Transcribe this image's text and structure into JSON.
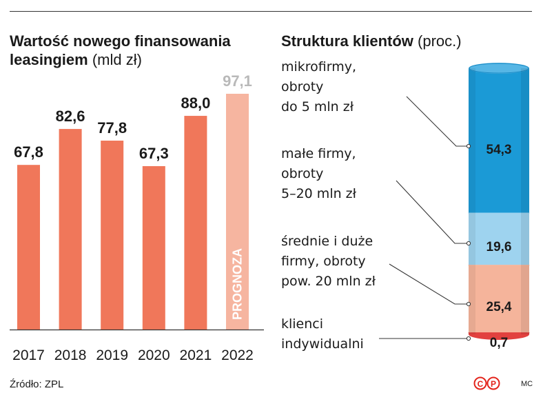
{
  "source": "Źródło: ZPL",
  "credit": "MC",
  "logo_text": "©P",
  "colors": {
    "bar": "#f0775a",
    "bar_forecast": "#f6b5a0",
    "forecast_label": "#b9b9b9",
    "cyl_dark": "#1b9ad6",
    "cyl_light": "#9ed3ef",
    "cyl_salmon": "#f5b49b",
    "cyl_red": "#e2413f",
    "logo": "#e3231a"
  },
  "chart_data": [
    {
      "type": "bar",
      "title": "Wartość nowego finansowania leasingiem",
      "title_line1": "Wartość nowego finansowania",
      "title_line2": "leasingiem",
      "unit": "(mld zł)",
      "categories": [
        "2017",
        "2018",
        "2019",
        "2020",
        "2021",
        "2022"
      ],
      "values": [
        67.8,
        82.6,
        77.8,
        67.3,
        88.0,
        97.1
      ],
      "value_labels": [
        "67,8",
        "82,6",
        "77,8",
        "67,3",
        "88,0",
        "97,1"
      ],
      "forecast": [
        false,
        false,
        false,
        false,
        false,
        true
      ],
      "forecast_label": "PROGNOZA",
      "ylim": [
        0,
        100
      ],
      "grid": false
    },
    {
      "type": "bar",
      "subtype": "stacked-cylinder",
      "title": "Struktura klientów",
      "unit": "(proc.)",
      "segments": [
        {
          "label": [
            "mikrofirmy,",
            "obroty",
            "do 5 mln zł"
          ],
          "value": 54.3,
          "value_label": "54,3",
          "color": "#1b9ad6"
        },
        {
          "label": [
            "małe firmy,",
            "obroty",
            "5–20 mln zł"
          ],
          "value": 19.6,
          "value_label": "19,6",
          "color": "#9ed3ef"
        },
        {
          "label": [
            "średnie i duże",
            "firmy, obroty",
            "pow. 20 mln zł"
          ],
          "value": 25.4,
          "value_label": "25,4",
          "color": "#f5b49b"
        },
        {
          "label": [
            "klienci",
            "indywidualni"
          ],
          "value": 0.7,
          "value_label": "0,7",
          "color": "#e2413f"
        }
      ]
    }
  ]
}
